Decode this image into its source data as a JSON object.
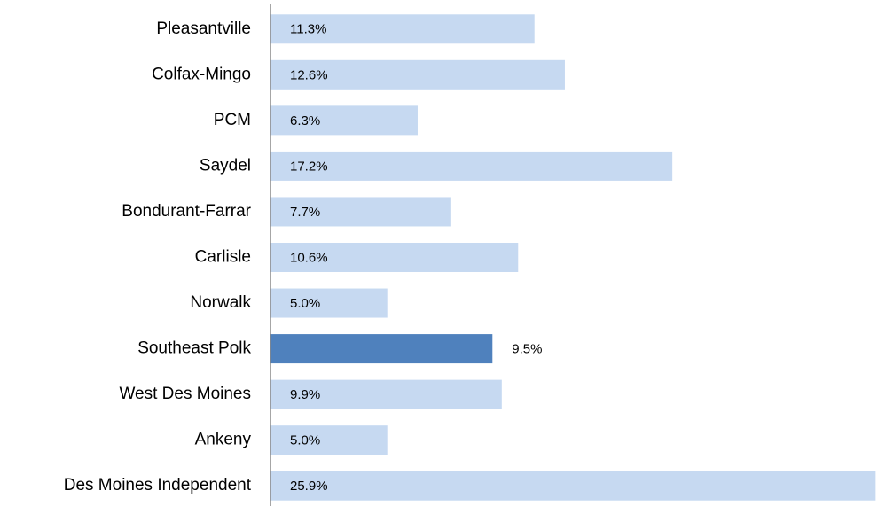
{
  "chart_data": {
    "type": "hbar",
    "categories": [
      "Pleasantville",
      "Colfax-Mingo",
      "PCM",
      "Saydel",
      "Bondurant-Farrar",
      "Carlisle",
      "Norwalk",
      "Southeast Polk",
      "West Des Moines",
      "Ankeny",
      "Des Moines Independent"
    ],
    "values": [
      11.3,
      12.6,
      6.3,
      17.2,
      7.7,
      10.6,
      5.0,
      9.5,
      9.9,
      5.0,
      25.9
    ],
    "value_labels": [
      "11.3%",
      "12.6%",
      "6.3%",
      "17.2%",
      "7.7%",
      "10.6%",
      "5.0%",
      "9.5%",
      "9.9%",
      "5.0%",
      "25.9%"
    ],
    "colors": [
      "#c6d9f1",
      "#c6d9f1",
      "#c6d9f1",
      "#c6d9f1",
      "#c6d9f1",
      "#c6d9f1",
      "#c6d9f1",
      "#4f81bd",
      "#c6d9f1",
      "#c6d9f1",
      "#c6d9f1"
    ],
    "xlim": [
      0,
      26
    ]
  }
}
